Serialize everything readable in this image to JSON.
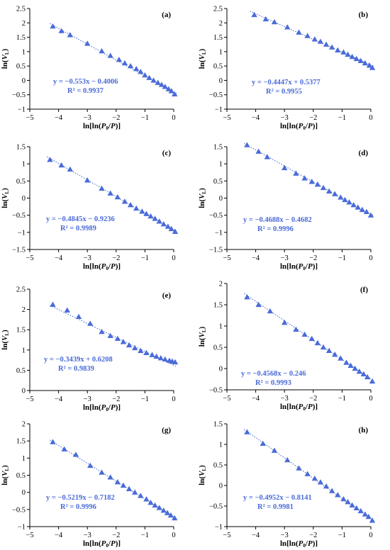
{
  "figure": {
    "marker_color": "#4a6bd8",
    "trendline_color": "#4a6bd8",
    "axis_color": "#000000"
  },
  "chart_data": [
    {
      "type": "scatter",
      "panel_label": "(a)",
      "xlabel": "ln[ln(P0/P)]",
      "ylabel": "ln(VL)",
      "xlim": [
        -5,
        0
      ],
      "ylim": [
        -1,
        2.5
      ],
      "x_ticks": [
        "−5",
        "−4",
        "−3",
        "−2",
        "−1",
        "0"
      ],
      "y_ticks": [
        "2.5",
        "2",
        "1.5",
        "1",
        "0.5",
        "0",
        "−0.5",
        "−1"
      ],
      "y_tick_values": [
        2.5,
        2,
        1.5,
        1,
        0.5,
        0,
        -0.5,
        -1
      ],
      "equation": "y = −0.553x − 0.4006",
      "r2": "R² = 0.9937",
      "fit": {
        "slope": -0.553,
        "intercept": -0.4006,
        "x_range": [
          -4.3,
          0.1
        ]
      },
      "series": [
        {
          "x": [
            -4.2,
            -3.9,
            -3.6,
            -3.0,
            -2.5,
            -2.2,
            -1.9,
            -1.7,
            -1.5,
            -1.3,
            -1.15,
            -1.0,
            -0.85,
            -0.7,
            -0.55,
            -0.42,
            -0.3,
            -0.18,
            -0.08,
            0.03
          ],
          "y": [
            1.88,
            1.72,
            1.58,
            1.28,
            1.02,
            0.86,
            0.72,
            0.6,
            0.5,
            0.4,
            0.3,
            0.18,
            0.09,
            0.0,
            -0.08,
            -0.15,
            -0.22,
            -0.3,
            -0.37,
            -0.48
          ]
        }
      ]
    },
    {
      "type": "scatter",
      "panel_label": "(b)",
      "xlabel": "ln[ln(P0/P)]",
      "ylabel": "ln(VL)",
      "xlim": [
        -5,
        0
      ],
      "ylim": [
        -1,
        2.5
      ],
      "x_ticks": [
        "−5",
        "−4",
        "−3",
        "−2",
        "−1",
        "0"
      ],
      "y_ticks": [
        "2.5",
        "2",
        "1.5",
        "1",
        "0.5",
        "0",
        "−0.5",
        "−1"
      ],
      "y_tick_values": [
        2.5,
        2,
        1.5,
        1,
        0.5,
        0,
        -0.5,
        -1
      ],
      "equation": "y = −0.4447x + 0.5377",
      "r2": "R² = 0.9955",
      "fit": {
        "slope": -0.4447,
        "intercept": 0.5377,
        "x_range": [
          -4.2,
          0.1
        ]
      },
      "series": [
        {
          "x": [
            -4.05,
            -3.65,
            -3.35,
            -2.9,
            -2.5,
            -2.2,
            -1.95,
            -1.75,
            -1.55,
            -1.35,
            -1.15,
            -0.95,
            -0.8,
            -0.65,
            -0.5,
            -0.35,
            -0.2,
            -0.05,
            0.05
          ],
          "y": [
            2.28,
            2.13,
            2.03,
            1.85,
            1.67,
            1.55,
            1.43,
            1.35,
            1.25,
            1.15,
            1.05,
            0.98,
            0.9,
            0.82,
            0.75,
            0.68,
            0.6,
            0.52,
            0.44
          ]
        }
      ]
    },
    {
      "type": "scatter",
      "panel_label": "(c)",
      "xlabel": "ln[ln(P0/P)]",
      "ylabel": "ln(VL)",
      "xlim": [
        -5,
        0
      ],
      "ylim": [
        -1.5,
        1.5
      ],
      "x_ticks": [
        "−5",
        "−4",
        "−3",
        "−2",
        "−1",
        "0"
      ],
      "y_ticks": [
        "1.5",
        "1",
        "0.5",
        "0",
        "−0.5",
        "−1",
        "−1.5"
      ],
      "y_tick_values": [
        1.5,
        1,
        0.5,
        0,
        -0.5,
        -1,
        -1.5
      ],
      "equation": "y = −0.4845x − 0.9236",
      "r2": "R² = 0.9989",
      "fit": {
        "slope": -0.4845,
        "intercept": -0.9236,
        "x_range": [
          -4.4,
          0.1
        ]
      },
      "series": [
        {
          "x": [
            -4.3,
            -3.9,
            -3.6,
            -3.0,
            -2.5,
            -2.2,
            -1.95,
            -1.7,
            -1.5,
            -1.3,
            -1.1,
            -0.95,
            -0.8,
            -0.65,
            -0.5,
            -0.35,
            -0.2,
            -0.08,
            0.05
          ],
          "y": [
            1.12,
            0.96,
            0.84,
            0.52,
            0.28,
            0.14,
            0.03,
            -0.1,
            -0.2,
            -0.3,
            -0.39,
            -0.46,
            -0.53,
            -0.6,
            -0.68,
            -0.76,
            -0.83,
            -0.9,
            -0.98
          ]
        }
      ]
    },
    {
      "type": "scatter",
      "panel_label": "(d)",
      "xlabel": "ln[ln(P0/P)]",
      "ylabel": "ln(VL)",
      "xlim": [
        -5,
        0
      ],
      "ylim": [
        -1.5,
        1.5
      ],
      "x_ticks": [
        "−5",
        "−4",
        "−3",
        "−2",
        "−1",
        "0"
      ],
      "y_ticks": [
        "1.5",
        "1",
        "0.5",
        "0",
        "−0.5",
        "−1",
        "−1.5"
      ],
      "y_tick_values": [
        1.5,
        1,
        0.5,
        0,
        -0.5,
        -1,
        -1.5
      ],
      "equation": "y = −0.4688x − 0.4682",
      "r2": "R² = 0.9996",
      "fit": {
        "slope": -0.4688,
        "intercept": -0.4682,
        "x_range": [
          -4.4,
          0.1
        ]
      },
      "series": [
        {
          "x": [
            -4.3,
            -3.9,
            -3.6,
            -3.0,
            -2.6,
            -2.3,
            -2.05,
            -1.85,
            -1.65,
            -1.45,
            -1.25,
            -1.05,
            -0.9,
            -0.75,
            -0.6,
            -0.45,
            -0.3,
            -0.15,
            0.0
          ],
          "y": [
            1.55,
            1.36,
            1.2,
            0.88,
            0.72,
            0.58,
            0.48,
            0.4,
            0.3,
            0.2,
            0.12,
            0.02,
            -0.05,
            -0.12,
            -0.2,
            -0.27,
            -0.34,
            -0.4,
            -0.5
          ]
        }
      ]
    },
    {
      "type": "scatter",
      "panel_label": "(e)",
      "xlabel": "ln[ln(P0/P)]",
      "ylabel": "ln(VL)",
      "xlim": [
        -5,
        0
      ],
      "ylim": [
        0,
        2.5
      ],
      "x_ticks": [
        "−5",
        "−4",
        "−3",
        "−2",
        "−1",
        "0"
      ],
      "y_ticks": [
        "2.5",
        "2",
        "1.5",
        "1",
        "0.5",
        "0"
      ],
      "y_tick_values": [
        2.5,
        2,
        1.5,
        1,
        0.5,
        0
      ],
      "equation": "y = −0.3439x + 0.6208",
      "r2": "R² = 0.9839",
      "fit": {
        "slope": -0.3439,
        "intercept": 0.6208,
        "x_range": [
          -4.3,
          0.1
        ]
      },
      "series": [
        {
          "x": [
            -4.2,
            -3.7,
            -3.3,
            -2.9,
            -2.5,
            -2.2,
            -1.95,
            -1.75,
            -1.55,
            -1.35,
            -1.15,
            -0.95,
            -0.75,
            -0.6,
            -0.45,
            -0.3,
            -0.15,
            -0.05,
            0.05
          ],
          "y": [
            2.12,
            1.98,
            1.82,
            1.65,
            1.45,
            1.35,
            1.28,
            1.2,
            1.12,
            1.05,
            0.98,
            0.93,
            0.88,
            0.84,
            0.8,
            0.77,
            0.74,
            0.72,
            0.7
          ]
        }
      ]
    },
    {
      "type": "scatter",
      "panel_label": "(f)",
      "xlabel": "ln[ln(P0/P)]",
      "ylabel": "ln(VL)",
      "xlim": [
        -5,
        0
      ],
      "ylim": [
        -0.5,
        2
      ],
      "x_ticks": [
        "−5",
        "−4",
        "−3",
        "−2",
        "−1",
        "0"
      ],
      "y_ticks": [
        "2",
        "1.5",
        "1",
        "0.5",
        "0",
        "−0.5"
      ],
      "y_tick_values": [
        2,
        1.5,
        1,
        0.5,
        0,
        -0.5
      ],
      "equation": "y = −0.4568x − 0.246",
      "r2": "R² = 0.9993",
      "fit": {
        "slope": -0.4568,
        "intercept": -0.246,
        "x_range": [
          -4.4,
          0.1
        ]
      },
      "series": [
        {
          "x": [
            -4.3,
            -3.9,
            -3.5,
            -3.0,
            -2.6,
            -2.3,
            -2.05,
            -1.85,
            -1.65,
            -1.45,
            -1.25,
            -1.05,
            -0.85,
            -0.7,
            -0.55,
            -0.4,
            -0.25,
            -0.12,
            0.05
          ],
          "y": [
            1.68,
            1.5,
            1.35,
            1.08,
            0.92,
            0.8,
            0.7,
            0.6,
            0.5,
            0.42,
            0.33,
            0.24,
            0.14,
            0.07,
            0.0,
            -0.07,
            -0.13,
            -0.2,
            -0.3
          ]
        }
      ]
    },
    {
      "type": "scatter",
      "panel_label": "(g)",
      "xlabel": "ln[ln(P0/P)]",
      "ylabel": "ln(VL)",
      "xlim": [
        -5,
        0
      ],
      "ylim": [
        -1,
        2
      ],
      "x_ticks": [
        "−5",
        "−4",
        "−3",
        "−2",
        "−1",
        "0"
      ],
      "y_ticks": [
        "2",
        "1.5",
        "1",
        "0.5",
        "0",
        "−0.5",
        "−1"
      ],
      "y_tick_values": [
        2,
        1.5,
        1,
        0.5,
        0,
        -0.5,
        -1
      ],
      "equation": "y = −0.5219x − 0.7182",
      "r2": "R² = 0.9996",
      "fit": {
        "slope": -0.5219,
        "intercept": -0.7182,
        "x_range": [
          -4.3,
          0.1
        ]
      },
      "series": [
        {
          "x": [
            -4.2,
            -3.8,
            -3.4,
            -2.9,
            -2.5,
            -2.2,
            -1.95,
            -1.75,
            -1.55,
            -1.35,
            -1.15,
            -0.95,
            -0.8,
            -0.65,
            -0.5,
            -0.35,
            -0.22,
            -0.1,
            0.03
          ],
          "y": [
            1.47,
            1.26,
            1.1,
            0.78,
            0.58,
            0.44,
            0.3,
            0.2,
            0.1,
            0.0,
            -0.1,
            -0.2,
            -0.3,
            -0.38,
            -0.45,
            -0.53,
            -0.6,
            -0.67,
            -0.75
          ]
        }
      ]
    },
    {
      "type": "scatter",
      "panel_label": "(h)",
      "xlabel": "ln[ln(P0/P)]",
      "ylabel": "ln(VL)",
      "xlim": [
        -5,
        0
      ],
      "ylim": [
        -1,
        1.5
      ],
      "x_ticks": [
        "−5",
        "−4",
        "−3",
        "−2",
        "−1",
        "0"
      ],
      "y_ticks": [
        "1.5",
        "1",
        "0.5",
        "0",
        "−0.5",
        "−1"
      ],
      "y_tick_values": [
        1.5,
        1,
        0.5,
        0,
        -0.5,
        -1
      ],
      "equation": "y = −0.4952x − 0.8141",
      "r2": "R² = 0.9981",
      "fit": {
        "slope": -0.4952,
        "intercept": -0.8141,
        "x_range": [
          -4.4,
          0.1
        ]
      },
      "series": [
        {
          "x": [
            -4.3,
            -3.75,
            -3.35,
            -2.9,
            -2.5,
            -2.2,
            -1.95,
            -1.75,
            -1.55,
            -1.35,
            -1.15,
            -0.95,
            -0.8,
            -0.65,
            -0.5,
            -0.35,
            -0.2,
            -0.08,
            0.05
          ],
          "y": [
            1.3,
            1.02,
            0.85,
            0.62,
            0.42,
            0.28,
            0.17,
            0.08,
            -0.02,
            -0.13,
            -0.23,
            -0.33,
            -0.4,
            -0.48,
            -0.55,
            -0.62,
            -0.7,
            -0.76,
            -0.85
          ]
        }
      ]
    }
  ]
}
